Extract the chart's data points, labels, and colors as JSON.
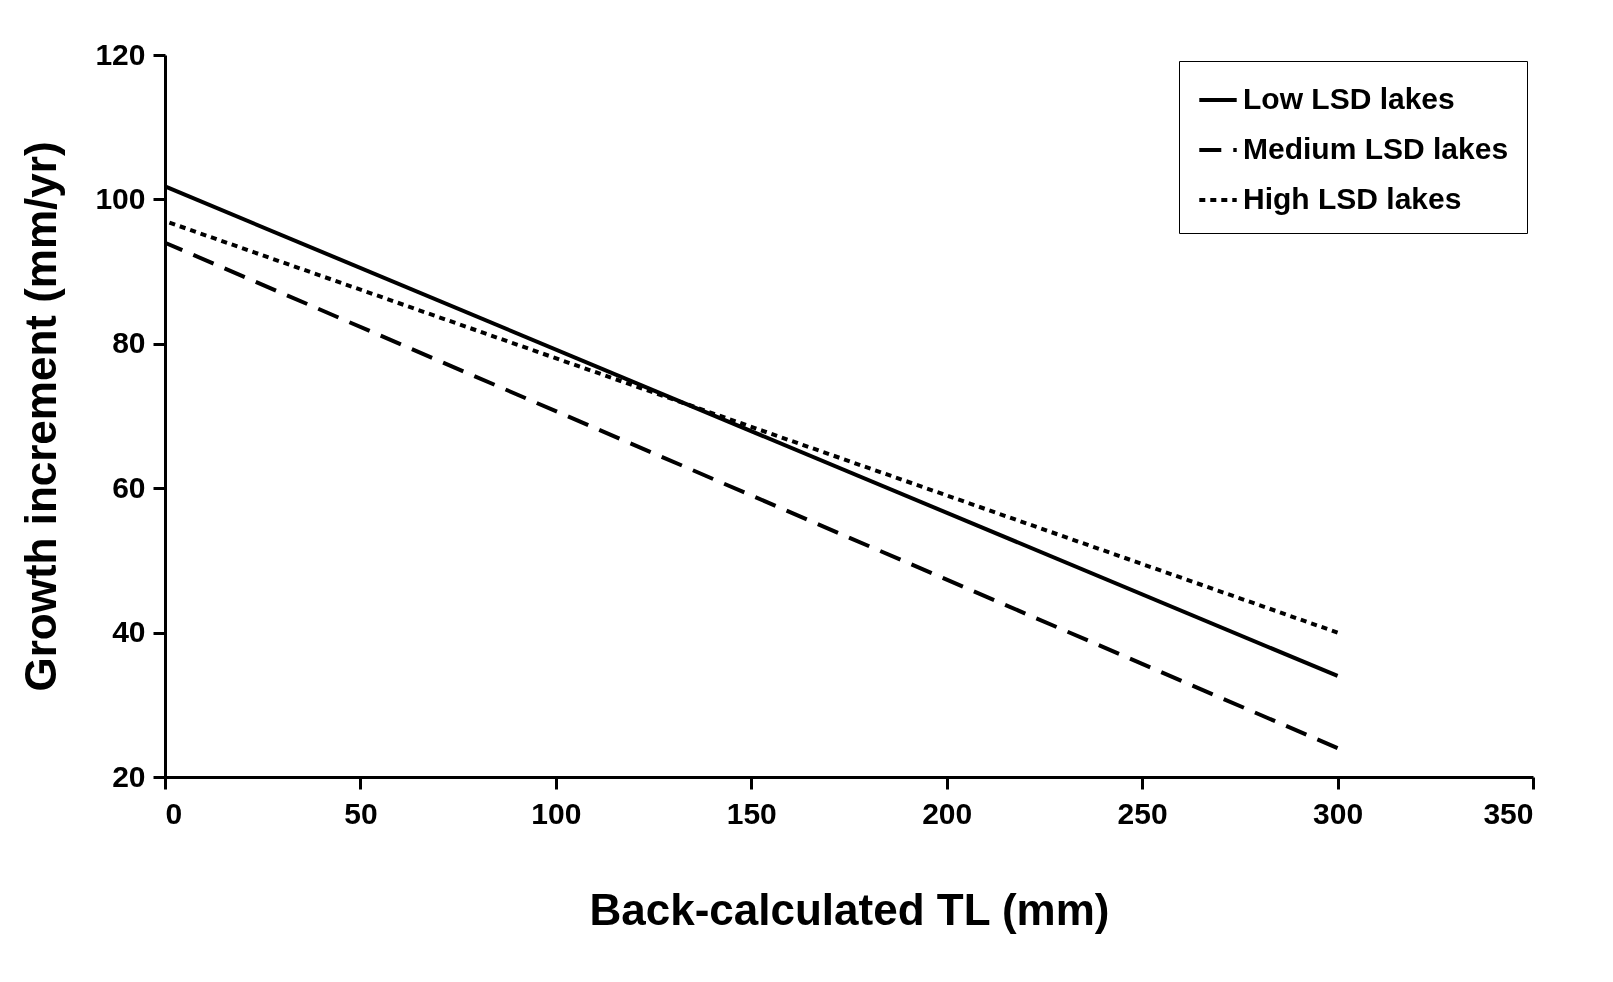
{
  "chart_data": {
    "type": "line",
    "xlabel": "Back-calculated TL (mm)",
    "ylabel": "Growth increment (mm/yr)",
    "x": [
      0,
      300
    ],
    "series": [
      {
        "name": "Low LSD lakes",
        "color": "#000000",
        "line_style": "solid",
        "values": [
          101.8,
          34
        ]
      },
      {
        "name": "Medium LSD lakes",
        "color": "#000000",
        "line_style": "dashed",
        "values": [
          94,
          24
        ]
      },
      {
        "name": "High LSD lakes",
        "color": "#000000",
        "line_style": "dotted",
        "values": [
          97,
          40
        ]
      }
    ],
    "xlim": [
      0,
      350
    ],
    "xticks": [
      0,
      50,
      100,
      150,
      200,
      250,
      300,
      350
    ],
    "ylim": [
      20,
      120
    ],
    "yticks": [
      20,
      40,
      60,
      80,
      100,
      120
    ],
    "grid": false,
    "legend": "top right",
    "marker": "none"
  }
}
